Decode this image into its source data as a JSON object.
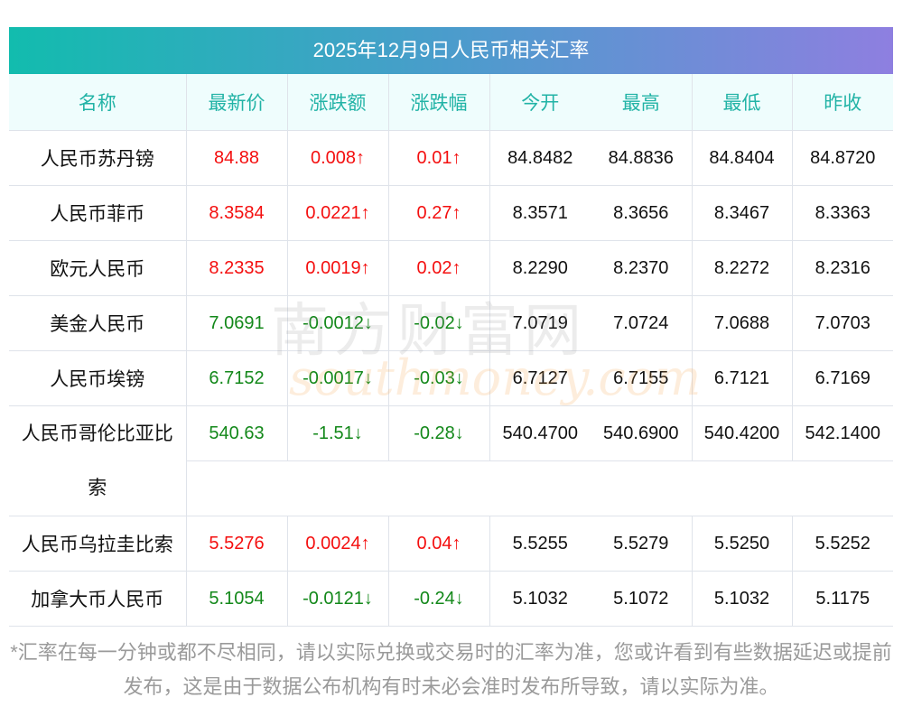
{
  "title": "2025年12月9日人民币相关汇率",
  "columns": [
    "名称",
    "最新价",
    "涨跌额",
    "涨跌幅",
    "今开",
    "最高",
    "最低",
    "昨收"
  ],
  "rows": [
    {
      "name": "人民币苏丹镑",
      "latest": "84.88",
      "change": "0.008↑",
      "pct": "0.01↑",
      "open": "84.8482",
      "high": "84.8836",
      "low": "84.8404",
      "prev": "84.8720",
      "dir": "up"
    },
    {
      "name": "人民币菲币",
      "latest": "8.3584",
      "change": "0.0221↑",
      "pct": "0.27↑",
      "open": "8.3571",
      "high": "8.3656",
      "low": "8.3467",
      "prev": "8.3363",
      "dir": "up"
    },
    {
      "name": "欧元人民币",
      "latest": "8.2335",
      "change": "0.0019↑",
      "pct": "0.02↑",
      "open": "8.2290",
      "high": "8.2370",
      "low": "8.2272",
      "prev": "8.2316",
      "dir": "up"
    },
    {
      "name": "美金人民币",
      "latest": "7.0691",
      "change": "-0.0012↓",
      "pct": "-0.02↓",
      "open": "7.0719",
      "high": "7.0724",
      "low": "7.0688",
      "prev": "7.0703",
      "dir": "down"
    },
    {
      "name": "人民币埃镑",
      "latest": "6.7152",
      "change": "-0.0017↓",
      "pct": "-0.03↓",
      "open": "6.7127",
      "high": "6.7155",
      "low": "6.7121",
      "prev": "6.7169",
      "dir": "down"
    },
    {
      "name": "人民币哥伦比亚比",
      "name2": "索",
      "latest": "540.63",
      "change": "-1.51↓",
      "pct": "-0.28↓",
      "open": "540.4700",
      "high": "540.6900",
      "low": "540.4200",
      "prev": "542.1400",
      "dir": "down"
    },
    {
      "name": "人民币乌拉圭比索",
      "latest": "5.5276",
      "change": "0.0024↑",
      "pct": "0.04↑",
      "open": "5.5255",
      "high": "5.5279",
      "low": "5.5250",
      "prev": "5.5252",
      "dir": "up"
    },
    {
      "name": "加拿大币人民币",
      "latest": "5.1054",
      "change": "-0.0121↓",
      "pct": "-0.24↓",
      "open": "5.1032",
      "high": "5.1072",
      "low": "5.1032",
      "prev": "5.1175",
      "dir": "down"
    }
  ],
  "watermark": {
    "cn": "南方财富网",
    "en": "southmoney.com"
  },
  "note": "*汇率在每一分钟或都不尽相同，请以实际兑换或交易时的汇率为准，您或许看到有些数据延迟或提前发布，这是由于数据公布机构有时未必会准时发布所导致，请以实际为准。",
  "colors": {
    "up": "#f40f0f",
    "down": "#13881a",
    "header_text": "#22b3a6"
  }
}
